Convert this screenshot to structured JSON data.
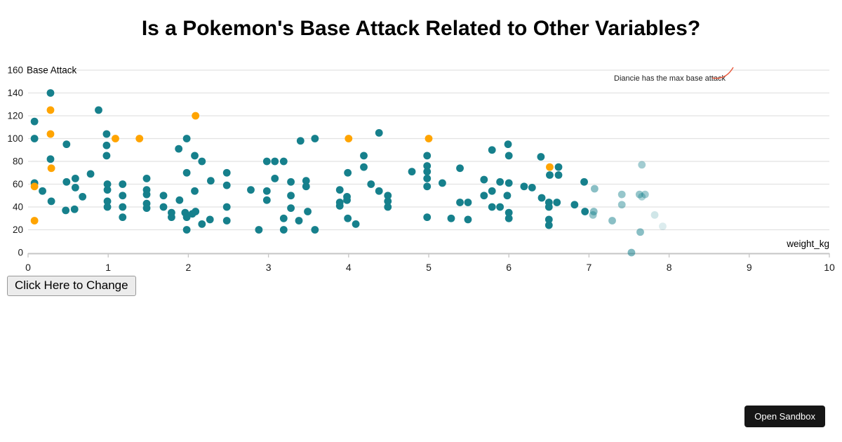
{
  "title": "Is a Pokemon's Base Attack Related to Other Variables?",
  "controls": {
    "change_button": "Click Here to Change"
  },
  "sandbox": {
    "open_button": "Open Sandbox"
  },
  "chart_data": {
    "type": "scatter",
    "title": "Is a Pokemon's Base Attack Related to Other Variables?",
    "xlabel": "weight_kg",
    "ylabel": "Base Attack",
    "xlim": [
      0,
      10
    ],
    "ylim": [
      0,
      160
    ],
    "x_ticks": [
      0,
      1,
      2,
      3,
      4,
      5,
      6,
      7,
      8,
      9,
      10
    ],
    "y_ticks": [
      0,
      20,
      40,
      60,
      80,
      100,
      120,
      140,
      160
    ],
    "grid": "horizontal",
    "legend": "none",
    "annotation": {
      "text": "Diancie has the max base attack",
      "color": "#e8593c"
    },
    "colors": {
      "teal": "#16808c",
      "orange": "#ffa400",
      "gridline": "#e2e2e2",
      "axis_line": "#c6c6c6",
      "tick_text": "#1a1a1a"
    },
    "series": [
      {
        "name": "teal-points",
        "color": "#16808c",
        "points": [
          [
            0.08,
            115
          ],
          [
            0.08,
            100
          ],
          [
            0.08,
            61
          ],
          [
            0.18,
            54
          ],
          [
            0.28,
            140
          ],
          [
            0.28,
            82
          ],
          [
            0.29,
            45
          ],
          [
            0.47,
            37
          ],
          [
            0.48,
            95
          ],
          [
            0.48,
            62
          ],
          [
            0.58,
            38
          ],
          [
            0.59,
            65
          ],
          [
            0.59,
            57
          ],
          [
            0.68,
            49
          ],
          [
            0.78,
            69
          ],
          [
            0.88,
            125
          ],
          [
            0.98,
            104
          ],
          [
            0.98,
            94
          ],
          [
            0.98,
            85
          ],
          [
            0.99,
            60
          ],
          [
            0.99,
            55
          ],
          [
            0.99,
            45
          ],
          [
            0.99,
            40
          ],
          [
            1.18,
            60
          ],
          [
            1.18,
            50
          ],
          [
            1.18,
            40
          ],
          [
            1.18,
            31
          ],
          [
            1.48,
            65
          ],
          [
            1.48,
            55
          ],
          [
            1.48,
            51
          ],
          [
            1.48,
            43
          ],
          [
            1.48,
            39
          ],
          [
            1.69,
            50
          ],
          [
            1.69,
            40
          ],
          [
            1.79,
            35
          ],
          [
            1.79,
            31
          ],
          [
            1.88,
            91
          ],
          [
            1.89,
            46
          ],
          [
            1.96,
            35
          ],
          [
            2.05,
            34
          ],
          [
            1.98,
            100
          ],
          [
            1.98,
            70
          ],
          [
            1.98,
            31
          ],
          [
            1.98,
            20
          ],
          [
            2.08,
            85
          ],
          [
            2.08,
            54
          ],
          [
            2.09,
            36
          ],
          [
            2.17,
            80
          ],
          [
            2.17,
            25
          ],
          [
            2.27,
            29
          ],
          [
            2.28,
            63
          ],
          [
            2.48,
            70
          ],
          [
            2.48,
            59
          ],
          [
            2.48,
            40
          ],
          [
            2.48,
            28
          ],
          [
            2.78,
            55
          ],
          [
            2.88,
            20
          ],
          [
            2.98,
            80
          ],
          [
            2.98,
            54
          ],
          [
            2.98,
            46
          ],
          [
            3.08,
            80
          ],
          [
            3.08,
            65
          ],
          [
            3.19,
            80
          ],
          [
            3.19,
            30
          ],
          [
            3.19,
            20
          ],
          [
            3.28,
            62
          ],
          [
            3.28,
            50
          ],
          [
            3.28,
            39
          ],
          [
            3.38,
            28
          ],
          [
            3.4,
            98
          ],
          [
            3.47,
            63
          ],
          [
            3.47,
            58
          ],
          [
            3.49,
            36
          ],
          [
            3.58,
            100
          ],
          [
            3.58,
            20
          ],
          [
            3.89,
            55
          ],
          [
            3.89,
            44
          ],
          [
            3.89,
            41
          ],
          [
            3.98,
            49
          ],
          [
            3.98,
            46
          ],
          [
            3.99,
            70
          ],
          [
            3.99,
            30
          ],
          [
            4.09,
            25
          ],
          [
            4.19,
            85
          ],
          [
            4.19,
            75
          ],
          [
            4.28,
            60
          ],
          [
            4.38,
            105
          ],
          [
            4.38,
            54
          ],
          [
            4.49,
            50
          ],
          [
            4.49,
            45
          ],
          [
            4.49,
            40
          ],
          [
            4.79,
            71
          ],
          [
            4.98,
            85
          ],
          [
            4.98,
            76
          ],
          [
            4.98,
            71
          ],
          [
            4.98,
            65
          ],
          [
            4.98,
            58
          ],
          [
            4.98,
            31
          ],
          [
            5.17,
            61
          ],
          [
            5.28,
            30
          ],
          [
            5.39,
            74
          ],
          [
            5.39,
            44
          ],
          [
            5.49,
            44
          ],
          [
            5.49,
            29
          ],
          [
            5.69,
            64
          ],
          [
            5.69,
            50
          ],
          [
            5.79,
            90
          ],
          [
            5.79,
            54
          ],
          [
            5.79,
            40
          ],
          [
            5.89,
            62
          ],
          [
            5.89,
            40
          ],
          [
            5.99,
            95
          ],
          [
            6.0,
            85
          ],
          [
            6.0,
            61
          ],
          [
            5.98,
            50
          ],
          [
            6.0,
            35
          ],
          [
            6.0,
            30
          ],
          [
            6.19,
            58
          ],
          [
            6.29,
            57
          ],
          [
            6.4,
            84
          ],
          [
            6.41,
            48
          ],
          [
            6.5,
            44
          ],
          [
            6.5,
            40
          ],
          [
            6.5,
            29
          ],
          [
            6.5,
            24
          ],
          [
            6.51,
            68
          ],
          [
            6.6,
            44
          ],
          [
            6.62,
            75
          ],
          [
            6.62,
            68
          ],
          [
            6.82,
            42
          ],
          [
            6.94,
            62
          ],
          [
            6.95,
            36
          ],
          [
            7.07,
            56,
            0.5
          ],
          [
            7.06,
            36,
            0.5
          ],
          [
            7.05,
            33,
            0.45
          ],
          [
            7.29,
            28,
            0.5
          ],
          [
            7.41,
            51,
            0.45
          ],
          [
            7.41,
            42,
            0.45
          ],
          [
            7.63,
            51,
            0.45
          ],
          [
            7.66,
            49,
            0.35
          ],
          [
            7.7,
            51,
            0.4
          ],
          [
            7.66,
            77,
            0.4
          ],
          [
            7.64,
            18,
            0.5
          ],
          [
            7.53,
            0,
            0.55
          ],
          [
            7.82,
            33,
            0.2
          ],
          [
            7.92,
            23,
            0.15
          ]
        ]
      },
      {
        "name": "orange-points",
        "color": "#ffa400",
        "points": [
          [
            0.08,
            58
          ],
          [
            0.08,
            28
          ],
          [
            0.28,
            125
          ],
          [
            0.28,
            104
          ],
          [
            0.29,
            74
          ],
          [
            1.09,
            100
          ],
          [
            1.39,
            100
          ],
          [
            2.09,
            120
          ],
          [
            4.0,
            100
          ],
          [
            5.0,
            100
          ],
          [
            6.51,
            75
          ]
        ]
      }
    ]
  }
}
